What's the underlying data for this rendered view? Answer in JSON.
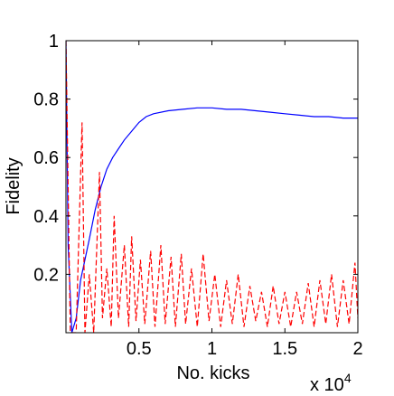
{
  "chart_data": {
    "type": "line",
    "title": "",
    "xlabel": "No. kicks",
    "ylabel": "Fidelity",
    "x_multiplier_label": "x 10",
    "x_multiplier_exponent": "4",
    "xlim": [
      0,
      20000
    ],
    "ylim": [
      0,
      1
    ],
    "x_ticks": [
      5000,
      10000,
      15000,
      20000
    ],
    "x_tick_labels": [
      "0.5",
      "1",
      "1.5",
      "2"
    ],
    "y_ticks": [
      0.2,
      0.4,
      0.6,
      0.8,
      1
    ],
    "y_tick_labels": [
      "0.2",
      "0.4",
      "0.6",
      "0.8",
      "1"
    ],
    "grid": false,
    "legend": "none",
    "series": [
      {
        "color": "#0000ff",
        "style": "solid",
        "points": [
          [
            0,
            1.0
          ],
          [
            150,
            0.3
          ],
          [
            400,
            0.0
          ],
          [
            700,
            0.05
          ],
          [
            1000,
            0.18
          ],
          [
            1300,
            0.25
          ],
          [
            1600,
            0.32
          ],
          [
            2000,
            0.42
          ],
          [
            2400,
            0.5
          ],
          [
            2800,
            0.56
          ],
          [
            3200,
            0.6
          ],
          [
            3600,
            0.63
          ],
          [
            4000,
            0.66
          ],
          [
            4500,
            0.69
          ],
          [
            5000,
            0.72
          ],
          [
            5500,
            0.74
          ],
          [
            6000,
            0.75
          ],
          [
            7000,
            0.76
          ],
          [
            8000,
            0.765
          ],
          [
            9000,
            0.77
          ],
          [
            10000,
            0.77
          ],
          [
            11000,
            0.765
          ],
          [
            12000,
            0.765
          ],
          [
            13000,
            0.76
          ],
          [
            14000,
            0.755
          ],
          [
            15000,
            0.75
          ],
          [
            16000,
            0.745
          ],
          [
            17000,
            0.74
          ],
          [
            18000,
            0.74
          ],
          [
            19000,
            0.735
          ],
          [
            20000,
            0.735
          ]
        ]
      },
      {
        "color": "#ff0000",
        "style": "dashed",
        "points": [
          [
            0,
            1.0
          ],
          [
            150,
            0.5
          ],
          [
            300,
            0.0
          ],
          [
            700,
            0.0
          ],
          [
            1100,
            0.72
          ],
          [
            1300,
            0.0
          ],
          [
            1600,
            0.2
          ],
          [
            1900,
            0.0
          ],
          [
            2300,
            0.55
          ],
          [
            2500,
            0.05
          ],
          [
            2800,
            0.22
          ],
          [
            3100,
            0.02
          ],
          [
            3300,
            0.4
          ],
          [
            3600,
            0.05
          ],
          [
            4000,
            0.3
          ],
          [
            4300,
            0.02
          ],
          [
            4500,
            0.33
          ],
          [
            4800,
            0.04
          ],
          [
            5100,
            0.25
          ],
          [
            5400,
            0.03
          ],
          [
            5800,
            0.28
          ],
          [
            6100,
            0.02
          ],
          [
            6500,
            0.3
          ],
          [
            6800,
            0.03
          ],
          [
            7200,
            0.26
          ],
          [
            7500,
            0.02
          ],
          [
            7900,
            0.27
          ],
          [
            8200,
            0.03
          ],
          [
            8600,
            0.22
          ],
          [
            9000,
            0.02
          ],
          [
            9400,
            0.27
          ],
          [
            9800,
            0.04
          ],
          [
            10200,
            0.2
          ],
          [
            10600,
            0.02
          ],
          [
            11000,
            0.18
          ],
          [
            11400,
            0.03
          ],
          [
            11800,
            0.2
          ],
          [
            12200,
            0.02
          ],
          [
            12600,
            0.16
          ],
          [
            13000,
            0.04
          ],
          [
            13400,
            0.14
          ],
          [
            13800,
            0.02
          ],
          [
            14200,
            0.16
          ],
          [
            14600,
            0.03
          ],
          [
            15000,
            0.14
          ],
          [
            15400,
            0.02
          ],
          [
            15800,
            0.14
          ],
          [
            16200,
            0.03
          ],
          [
            16600,
            0.17
          ],
          [
            17000,
            0.02
          ],
          [
            17400,
            0.18
          ],
          [
            17800,
            0.03
          ],
          [
            18200,
            0.2
          ],
          [
            18600,
            0.02
          ],
          [
            19000,
            0.18
          ],
          [
            19400,
            0.03
          ],
          [
            19800,
            0.24
          ],
          [
            20000,
            0.05
          ]
        ]
      }
    ]
  }
}
